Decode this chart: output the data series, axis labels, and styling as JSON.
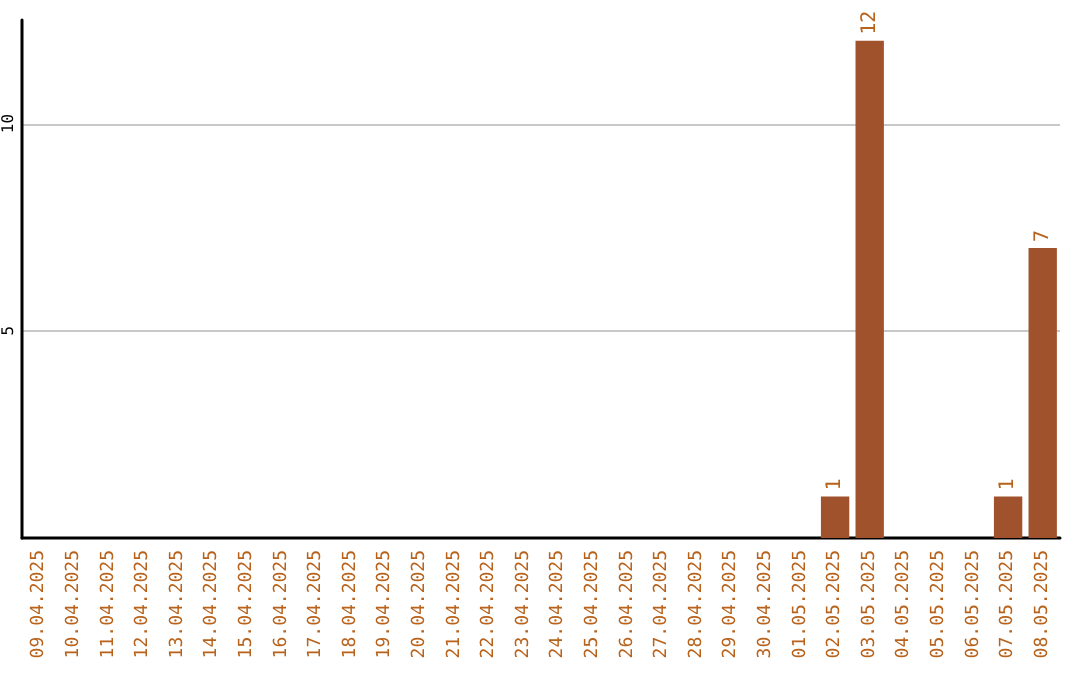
{
  "chart_data": {
    "type": "bar",
    "categories": [
      "09.04.2025",
      "10.04.2025",
      "11.04.2025",
      "12.04.2025",
      "13.04.2025",
      "14.04.2025",
      "15.04.2025",
      "16.04.2025",
      "17.04.2025",
      "18.04.2025",
      "19.04.2025",
      "20.04.2025",
      "21.04.2025",
      "22.04.2025",
      "23.04.2025",
      "24.04.2025",
      "25.04.2025",
      "26.04.2025",
      "27.04.2025",
      "28.04.2025",
      "29.04.2025",
      "30.04.2025",
      "01.05.2025",
      "02.05.2025",
      "03.05.2025",
      "04.05.2025",
      "05.05.2025",
      "06.05.2025",
      "07.05.2025",
      "08.05.2025"
    ],
    "values": [
      0,
      0,
      0,
      0,
      0,
      0,
      0,
      0,
      0,
      0,
      0,
      0,
      0,
      0,
      0,
      0,
      0,
      0,
      0,
      0,
      0,
      0,
      0,
      1,
      12,
      0,
      0,
      0,
      1,
      7
    ],
    "value_labels": [
      null,
      null,
      null,
      null,
      null,
      null,
      null,
      null,
      null,
      null,
      null,
      null,
      null,
      null,
      null,
      null,
      null,
      null,
      null,
      null,
      null,
      null,
      null,
      "1",
      "12",
      null,
      null,
      null,
      "1",
      "7"
    ],
    "color": "#a0522d",
    "ylim": [
      0,
      12.5
    ],
    "yticks": [
      5,
      10
    ],
    "grid": "y"
  }
}
